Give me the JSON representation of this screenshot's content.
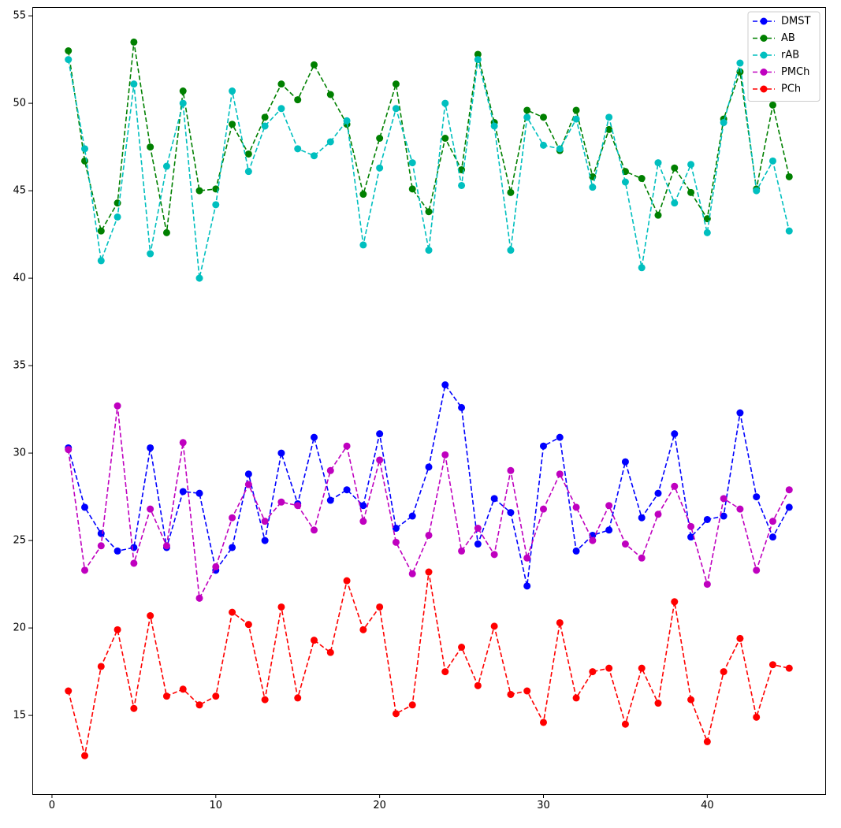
{
  "chart_data": {
    "type": "line",
    "title": "",
    "xlabel": "",
    "ylabel": "",
    "xlim": [
      -1.2,
      47.2
    ],
    "ylim": [
      10.5,
      55.5
    ],
    "x_ticks": [
      0,
      10,
      20,
      30,
      40
    ],
    "y_ticks": [
      15,
      20,
      25,
      30,
      35,
      40,
      45,
      50,
      55
    ],
    "grid": false,
    "legend_position": "top-right",
    "line_style": "dashed",
    "marker": "circle",
    "x": [
      1,
      2,
      3,
      4,
      5,
      6,
      7,
      8,
      9,
      10,
      11,
      12,
      13,
      14,
      15,
      16,
      17,
      18,
      19,
      20,
      21,
      22,
      23,
      24,
      25,
      26,
      27,
      28,
      29,
      30,
      31,
      32,
      33,
      34,
      35,
      36,
      37,
      38,
      39,
      40,
      41,
      42,
      43,
      44,
      45
    ],
    "series": [
      {
        "name": "DMST",
        "color": "#0000ff",
        "values": [
          30.3,
          26.9,
          25.4,
          24.4,
          24.6,
          30.3,
          24.6,
          27.8,
          27.7,
          23.3,
          24.6,
          28.8,
          25.0,
          30.0,
          27.1,
          30.9,
          27.3,
          27.9,
          27.0,
          31.1,
          25.7,
          26.4,
          29.2,
          33.9,
          32.6,
          24.8,
          27.4,
          26.6,
          22.4,
          30.4,
          30.9,
          24.4,
          25.3,
          25.6,
          29.5,
          26.3,
          27.7,
          31.1,
          25.2,
          26.2,
          26.4,
          32.3,
          27.5,
          25.2,
          26.9
        ]
      },
      {
        "name": "AB",
        "color": "#008000",
        "values": [
          53.0,
          46.7,
          42.7,
          44.3,
          53.5,
          47.5,
          42.6,
          50.7,
          45.0,
          45.1,
          48.8,
          47.1,
          49.2,
          51.1,
          50.2,
          52.2,
          50.5,
          48.8,
          44.8,
          48.0,
          51.1,
          45.1,
          43.8,
          48.0,
          46.2,
          52.8,
          48.9,
          44.9,
          49.6,
          49.2,
          47.3,
          49.6,
          45.8,
          48.5,
          46.1,
          45.7,
          43.6,
          46.3,
          44.9,
          43.4,
          49.1,
          51.8,
          45.1,
          49.9,
          45.8
        ]
      },
      {
        "name": "rAB",
        "color": "#00bfbf",
        "values": [
          52.5,
          47.4,
          41.0,
          43.5,
          51.1,
          41.4,
          46.4,
          50.0,
          40.0,
          44.2,
          50.7,
          46.1,
          48.7,
          49.7,
          47.4,
          47.0,
          47.8,
          49.0,
          41.9,
          46.3,
          49.7,
          46.6,
          41.6,
          50.0,
          45.3,
          52.5,
          48.7,
          41.6,
          49.2,
          47.6,
          47.4,
          49.1,
          45.2,
          49.2,
          45.5,
          40.6,
          46.6,
          44.3,
          46.5,
          42.6,
          48.9,
          52.3,
          45.0,
          46.7,
          42.7
        ]
      },
      {
        "name": "PMCh",
        "color": "#bf00bf",
        "values": [
          30.2,
          23.3,
          24.7,
          32.7,
          23.7,
          26.8,
          24.7,
          30.6,
          21.7,
          23.5,
          26.3,
          28.2,
          26.1,
          27.2,
          27.0,
          25.6,
          29.0,
          30.4,
          26.1,
          29.6,
          24.9,
          23.1,
          25.3,
          29.9,
          24.4,
          25.7,
          24.2,
          29.0,
          24.0,
          26.8,
          28.8,
          26.9,
          25.0,
          27.0,
          24.8,
          24.0,
          26.5,
          28.1,
          25.8,
          22.5,
          27.4,
          26.8,
          23.3,
          26.1,
          27.9
        ]
      },
      {
        "name": "PCh",
        "color": "#ff0000",
        "values": [
          16.4,
          12.7,
          17.8,
          19.9,
          15.4,
          20.7,
          16.1,
          16.5,
          15.6,
          16.1,
          20.9,
          20.2,
          15.9,
          21.2,
          16.0,
          19.3,
          18.6,
          22.7,
          19.9,
          21.2,
          15.1,
          15.6,
          23.2,
          17.5,
          18.9,
          16.7,
          20.1,
          16.2,
          16.4,
          14.6,
          20.3,
          16.0,
          17.5,
          17.7,
          14.5,
          17.7,
          15.7,
          21.5,
          15.9,
          13.5,
          17.5,
          19.4,
          14.9,
          17.9,
          17.7
        ]
      }
    ]
  }
}
